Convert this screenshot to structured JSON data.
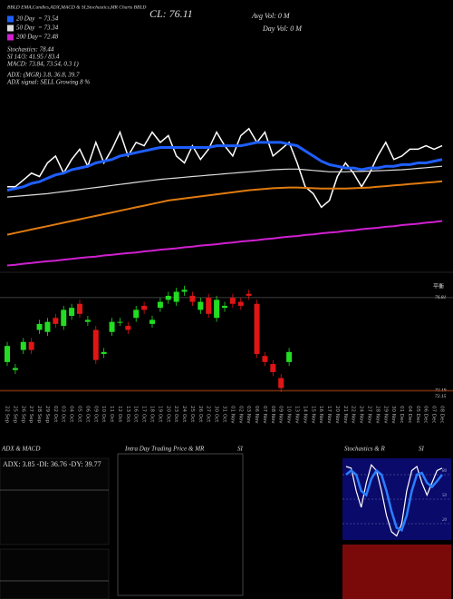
{
  "chart_data": [
    {
      "type": "line",
      "annotations": [
        "BBLD EMA,Candles,ADX,MACD & SI,Stochastics,MR Charts BBLD",
        "CL: 76.11",
        "Avg Vol: 0  M",
        "Day Vol: 0  M",
        "Stochastics: 78.44",
        "SI 14/3: 41.95 / 83.4",
        "MACD: 73.84,  73.54,  0.3 1)",
        "ADX:              (MGR) 3.8,  36.8,  39.7",
        "ADX  signal: SELL Growing 8 %"
      ],
      "categories": [
        "22 Sep",
        "25 Sep",
        "26 Sep",
        "27 Sep",
        "28 Sep",
        "29 Sep",
        "02 Oct",
        "03 Oct",
        "04 Oct",
        "05 Oct",
        "06 Oct",
        "09 Oct",
        "10 Oct",
        "11 Oct",
        "12 Oct",
        "13 Oct",
        "16 Oct",
        "17 Oct",
        "18 Oct",
        "19 Oct",
        "20 Oct",
        "23 Oct",
        "24 Oct",
        "25 Oct",
        "26 Oct",
        "27 Oct",
        "30 Oct",
        "31 Oct",
        "01 Nov",
        "02 Nov",
        "03 Nov",
        "06 Nov",
        "07 Nov",
        "08 Nov",
        "09 Nov",
        "10 Nov",
        "13 Nov",
        "14 Nov",
        "15 Nov",
        "16 Nov",
        "17 Nov",
        "20 Nov",
        "21 Nov",
        "22 Nov",
        "24 Nov",
        "27 Nov",
        "28 Nov",
        "29 Nov",
        "30 Nov",
        "01 Dec",
        "04 Dec",
        "05 Dec",
        "06 Dec",
        "07 Dec",
        "08 Dec"
      ],
      "ylim": [
        69.8,
        77.5
      ],
      "series": [
        {
          "color": "#ffffff",
          "width": 1.5,
          "values": [
            72.3,
            72.3,
            72.5,
            72.7,
            72.6,
            73.0,
            73.2,
            72.7,
            73.1,
            73.4,
            72.9,
            73.6,
            73.0,
            73.4,
            73.9,
            73.2,
            73.6,
            73.5,
            73.9,
            73.6,
            73.8,
            73.2,
            73.0,
            73.5,
            73.1,
            73.4,
            73.9,
            73.5,
            73.2,
            73.8,
            74.0,
            73.6,
            73.9,
            73.2,
            73.4,
            73.6,
            73.0,
            72.3,
            72.1,
            71.7,
            71.9,
            72.6,
            73.0,
            72.7,
            72.3,
            72.7,
            73.2,
            73.6,
            73.1,
            73.2,
            73.4,
            73.4,
            73.5,
            73.4,
            73.5
          ]
        },
        {
          "name": "20 Day",
          "legend_label": "= 73.54",
          "color": "#1f5fff",
          "width": 3,
          "values": [
            72.2,
            72.25,
            72.3,
            72.4,
            72.45,
            72.55,
            72.65,
            72.7,
            72.8,
            72.85,
            72.9,
            73.0,
            73.05,
            73.1,
            73.2,
            73.25,
            73.3,
            73.35,
            73.4,
            73.45,
            73.45,
            73.45,
            73.45,
            73.45,
            73.45,
            73.45,
            73.5,
            73.5,
            73.5,
            73.5,
            73.55,
            73.6,
            73.6,
            73.6,
            73.6,
            73.55,
            73.5,
            73.35,
            73.2,
            73.05,
            72.95,
            72.9,
            72.85,
            72.85,
            72.8,
            72.85,
            72.85,
            72.9,
            72.9,
            72.95,
            72.95,
            73.0,
            73.0,
            73.05,
            73.1
          ]
        },
        {
          "name": "50 Day",
          "legend_label": "= 73.34",
          "color": "#dddddd",
          "width": 1.2,
          "values": [
            72.0,
            72.02,
            72.04,
            72.06,
            72.08,
            72.1,
            72.13,
            72.16,
            72.19,
            72.22,
            72.25,
            72.28,
            72.31,
            72.34,
            72.37,
            72.4,
            72.43,
            72.46,
            72.49,
            72.52,
            72.54,
            72.56,
            72.58,
            72.6,
            72.62,
            72.64,
            72.66,
            72.68,
            72.7,
            72.72,
            72.74,
            72.76,
            72.78,
            72.8,
            72.81,
            72.82,
            72.82,
            72.8,
            72.78,
            72.76,
            72.74,
            72.74,
            72.74,
            72.75,
            72.75,
            72.76,
            72.77,
            72.78,
            72.79,
            72.8,
            72.82,
            72.84,
            72.86,
            72.88,
            72.9
          ]
        },
        {
          "color": "#e07b10",
          "width": 2,
          "values": [
            70.9,
            70.95,
            71.0,
            71.05,
            71.1,
            71.15,
            71.2,
            71.25,
            71.3,
            71.35,
            71.4,
            71.45,
            71.5,
            71.55,
            71.6,
            71.65,
            71.7,
            71.75,
            71.8,
            71.85,
            71.9,
            71.93,
            71.96,
            71.99,
            72.02,
            72.05,
            72.08,
            72.11,
            72.14,
            72.17,
            72.2,
            72.22,
            72.24,
            72.26,
            72.27,
            72.28,
            72.28,
            72.27,
            72.26,
            72.25,
            72.25,
            72.25,
            72.25,
            72.26,
            72.27,
            72.28,
            72.3,
            72.32,
            72.34,
            72.36,
            72.38,
            72.4,
            72.42,
            72.44,
            72.46
          ]
        },
        {
          "name": "200 Day",
          "legend_label": "= 72.48",
          "color": "#d020d0",
          "width": 2,
          "values": [
            70.0,
            70.02,
            70.05,
            70.07,
            70.1,
            70.12,
            70.14,
            70.17,
            70.19,
            70.22,
            70.24,
            70.26,
            70.29,
            70.31,
            70.34,
            70.36,
            70.38,
            70.41,
            70.43,
            70.46,
            70.48,
            70.5,
            70.53,
            70.55,
            70.58,
            70.6,
            70.62,
            70.65,
            70.67,
            70.7,
            70.72,
            70.74,
            70.77,
            70.79,
            70.82,
            70.84,
            70.86,
            70.89,
            70.91,
            70.94,
            70.96,
            70.98,
            71.01,
            71.03,
            71.06,
            71.08,
            71.1,
            71.13,
            71.15,
            71.18,
            71.2,
            71.22,
            71.25,
            71.27,
            71.3
          ]
        }
      ]
    },
    {
      "type": "candlestick",
      "annotation": "平衡",
      "ylim": [
        71.74,
        77.62
      ],
      "yticks": [
        76.81,
        72.19,
        72.15
      ],
      "grid": true,
      "up_color": "#22dd22",
      "down_color": "#e01515",
      "open": [
        73.6,
        73.2,
        74.2,
        74.6,
        75.2,
        75.1,
        75.8,
        75.4,
        75.9,
        76.5,
        75.6,
        75.2,
        74.0,
        75.1,
        75.6,
        75.4,
        75.8,
        76.4,
        75.5,
        76.3,
        76.7,
        76.6,
        77.1,
        76.9,
        76.2,
        76.8,
        75.8,
        76.3,
        76.8,
        76.6,
        77.0,
        76.5,
        73.9,
        73.5,
        72.8,
        73.6,
        null,
        null,
        null,
        null,
        null,
        null,
        null,
        null,
        null,
        null,
        null,
        null,
        null,
        null,
        null,
        null,
        null,
        null,
        null
      ],
      "high": [
        74.6,
        73.5,
        74.8,
        74.8,
        75.7,
        75.8,
        76.0,
        76.4,
        76.5,
        76.7,
        75.9,
        75.4,
        74.3,
        75.8,
        75.8,
        75.6,
        76.4,
        76.6,
        75.9,
        76.8,
        77.1,
        77.3,
        77.4,
        77.1,
        76.8,
        77.0,
        76.9,
        76.6,
        77.0,
        76.8,
        77.2,
        76.7,
        74.1,
        73.7,
        73.0,
        74.3,
        null,
        null,
        null,
        null,
        null,
        null,
        null,
        null,
        null,
        null,
        null,
        null,
        null,
        null,
        null,
        null,
        null,
        null,
        null
      ],
      "low": [
        73.4,
        73.0,
        74.0,
        74.0,
        75.0,
        74.9,
        75.3,
        75.2,
        75.7,
        75.8,
        75.4,
        73.5,
        73.8,
        74.9,
        75.4,
        75.0,
        75.6,
        76.0,
        75.3,
        76.1,
        76.5,
        76.4,
        76.9,
        76.4,
        76.0,
        75.8,
        75.6,
        76.1,
        76.3,
        76.2,
        76.7,
        73.8,
        73.4,
        72.9,
        72.1,
        73.4,
        null,
        null,
        null,
        null,
        null,
        null,
        null,
        null,
        null,
        null,
        null,
        null,
        null,
        null,
        null,
        null,
        null,
        null,
        null
      ],
      "close": [
        74.4,
        73.3,
        74.6,
        74.2,
        75.5,
        75.6,
        75.5,
        76.2,
        76.3,
        76.0,
        75.7,
        73.7,
        74.1,
        75.6,
        75.6,
        75.2,
        76.2,
        76.2,
        75.7,
        76.6,
        76.9,
        77.1,
        77.2,
        76.6,
        76.6,
        76.0,
        76.7,
        76.4,
        76.5,
        76.4,
        76.9,
        74.0,
        73.6,
        73.1,
        72.3,
        74.1,
        null,
        null,
        null,
        null,
        null,
        null,
        null,
        null,
        null,
        null,
        null,
        null,
        null,
        null,
        null,
        null,
        null,
        null,
        null
      ]
    },
    {
      "type": "line",
      "ylim": [
        0,
        100
      ],
      "yticks": [
        20,
        50,
        80
      ],
      "series": [
        {
          "color": "#ffffff",
          "width": 1.2,
          "values": [
            90,
            88,
            60,
            40,
            70,
            92,
            85,
            60,
            30,
            10,
            5,
            20,
            60,
            85,
            90,
            70,
            55,
            70,
            85,
            88
          ]
        },
        {
          "color": "#2a7fff",
          "width": 2.5,
          "values": [
            80,
            85,
            80,
            60,
            55,
            75,
            85,
            80,
            60,
            35,
            15,
            12,
            30,
            60,
            80,
            82,
            70,
            65,
            72,
            80
          ]
        }
      ]
    }
  ],
  "panels": [
    {
      "title": "ADX  & MACD",
      "text": "ADX: 3.85  -DI: 36.76  -DY: 39.77"
    },
    {
      "title": "Intra  Day Trading Price  & MR",
      "subtitle": "SI"
    },
    {
      "title": "Stochastics & R",
      "subtitle": "SI"
    }
  ]
}
